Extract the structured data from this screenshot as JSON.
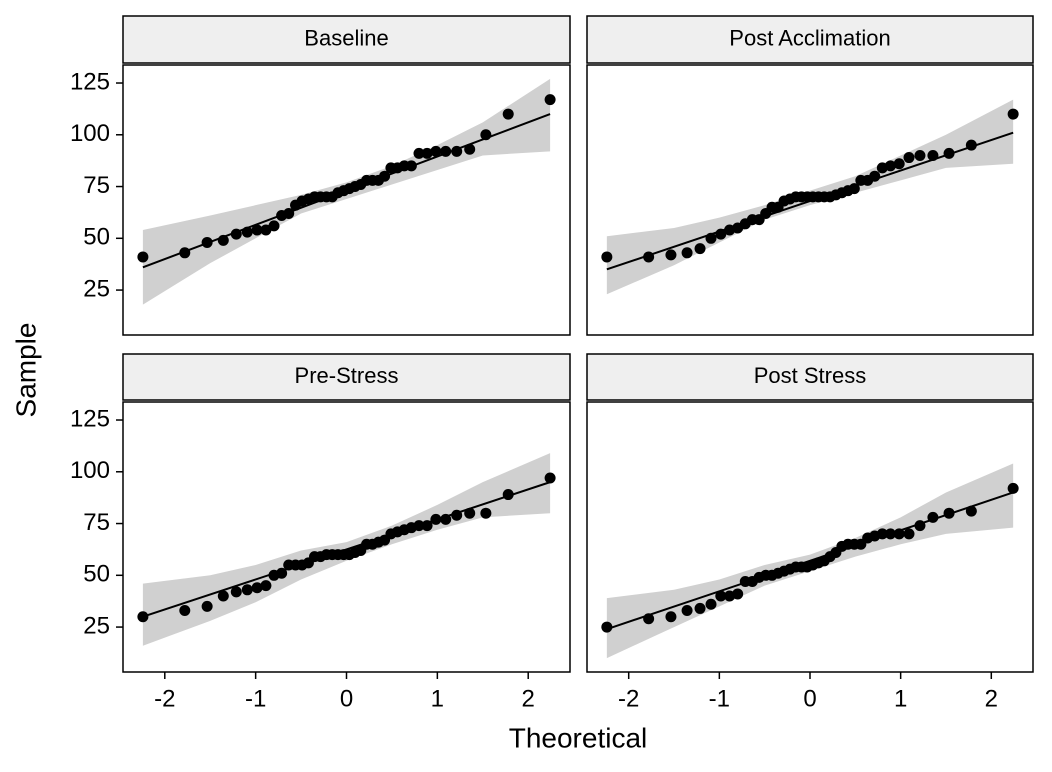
{
  "chart_data": {
    "type": "qq",
    "x_label": "Theoretical",
    "y_label": "Sample",
    "xlim": [
      -2.46,
      2.46
    ],
    "ylim": [
      3.3,
      133.7
    ],
    "xticks": [
      -2,
      -1,
      0,
      1,
      2
    ],
    "yticks": [
      25,
      50,
      75,
      100,
      125
    ],
    "point_color": "#000000",
    "band_color": "#d0d0d0",
    "x": [
      -2.241,
      -1.78,
      -1.534,
      -1.356,
      -1.213,
      -1.092,
      -0.984,
      -0.887,
      -0.798,
      -0.714,
      -0.636,
      -0.561,
      -0.489,
      -0.419,
      -0.352,
      -0.286,
      -0.221,
      -0.157,
      -0.094,
      -0.031,
      0.031,
      0.094,
      0.157,
      0.221,
      0.286,
      0.352,
      0.419,
      0.489,
      0.561,
      0.636,
      0.714,
      0.798,
      0.887,
      0.984,
      1.092,
      1.213,
      1.356,
      1.534,
      1.78,
      2.241
    ],
    "line_x": [
      -2.241,
      2.241
    ],
    "band_x": [
      -2.241,
      -1.5,
      -1,
      -0.5,
      0,
      0.5,
      1,
      1.5,
      2.241
    ],
    "panels": [
      {
        "title": "Baseline",
        "values": [
          41,
          43,
          48,
          49,
          52,
          53,
          54,
          54,
          56,
          61,
          62,
          66,
          68,
          69,
          70,
          70,
          70,
          70,
          72,
          73,
          74,
          75,
          76,
          78,
          78,
          78,
          80,
          84,
          84,
          85,
          85,
          91,
          91,
          92,
          92,
          92,
          93,
          100,
          110,
          117
        ],
        "line": [
          36,
          110
        ],
        "band_lower": [
          18,
          38,
          50,
          62,
          69,
          76,
          83,
          90,
          92
        ],
        "band_upper": [
          54,
          61,
          66,
          71,
          77,
          85,
          95,
          106,
          127
        ]
      },
      {
        "title": "Post Acclimation",
        "values": [
          41,
          41,
          42,
          43,
          45,
          50,
          52,
          54,
          55,
          57,
          59,
          59,
          62,
          65,
          65,
          68,
          69,
          70,
          70,
          70,
          70,
          70,
          70,
          70,
          71,
          72,
          73,
          74,
          78,
          78,
          80,
          84,
          85,
          86,
          89,
          90,
          90,
          91,
          95,
          110
        ],
        "line": [
          35,
          101
        ],
        "band_lower": [
          23,
          37,
          48,
          59,
          66,
          72,
          78,
          84,
          86
        ],
        "band_upper": [
          51,
          55,
          60,
          66,
          73,
          80,
          90,
          100,
          117
        ]
      },
      {
        "title": "Pre-Stress",
        "values": [
          30,
          33,
          35,
          40,
          42,
          43,
          44,
          45,
          50,
          51,
          55,
          55,
          55,
          56,
          59,
          59,
          60,
          60,
          60,
          60,
          60,
          61,
          62,
          65,
          65,
          66,
          67,
          70,
          71,
          72,
          73,
          74,
          74,
          77,
          77,
          79,
          80,
          80,
          89,
          97
        ],
        "line": [
          30,
          95
        ],
        "band_lower": [
          16,
          28,
          37,
          48,
          57,
          65,
          72,
          78,
          80
        ],
        "band_upper": [
          46,
          50,
          55,
          62,
          66,
          74,
          84,
          95,
          109
        ]
      },
      {
        "title": "Post Stress",
        "values": [
          25,
          29,
          30,
          33,
          34,
          36,
          40,
          40,
          41,
          47,
          47,
          49,
          50,
          50,
          51,
          52,
          53,
          54,
          54,
          54,
          55,
          56,
          57,
          59,
          61,
          64,
          65,
          65,
          65,
          68,
          69,
          70,
          70,
          70,
          70,
          74,
          78,
          80,
          81,
          92
        ],
        "line": [
          24,
          90
        ],
        "band_lower": [
          10,
          25,
          35,
          45,
          52,
          59,
          65,
          70,
          73
        ],
        "band_upper": [
          39,
          43,
          48,
          55,
          60,
          68,
          78,
          90,
          104
        ]
      }
    ]
  }
}
